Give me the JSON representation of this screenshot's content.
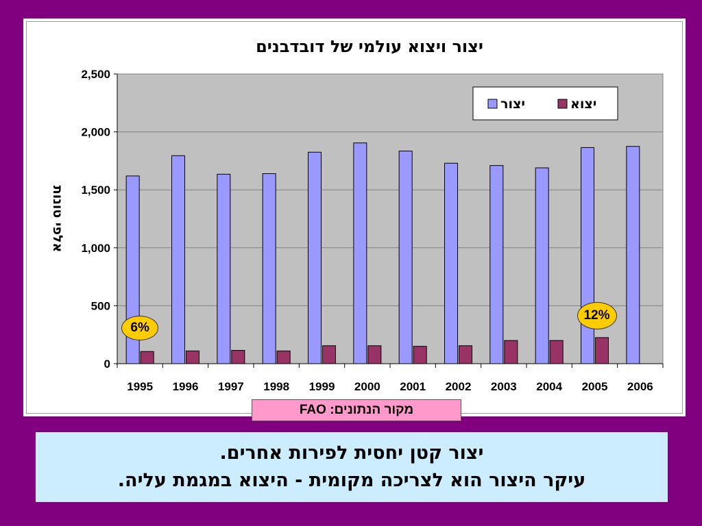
{
  "chart_data": {
    "type": "bar",
    "title": "יצור ויצוא עולמי של דובדבנים",
    "ylabel": "אלפי טונות",
    "xlabel": "",
    "categories": [
      "1995",
      "1996",
      "1997",
      "1998",
      "1999",
      "2000",
      "2001",
      "2002",
      "2003",
      "2004",
      "2005",
      "2006"
    ],
    "series": [
      {
        "name": "יצור",
        "color": "#9999ff",
        "values": [
          1620,
          1795,
          1635,
          1640,
          1825,
          1905,
          1835,
          1730,
          1710,
          1690,
          1865,
          1875
        ]
      },
      {
        "name": "יצוא",
        "color": "#993366",
        "values": [
          105,
          110,
          115,
          110,
          155,
          155,
          150,
          155,
          200,
          200,
          225,
          null
        ]
      }
    ],
    "ylim": [
      0,
      2500
    ],
    "yticks": [
      0,
      500,
      1000,
      1500,
      2000,
      2500
    ],
    "ytick_labels": [
      "0",
      "500",
      "1,000",
      "1,500",
      "2,000",
      "2,500"
    ],
    "grid": true,
    "legend_position": "top-right",
    "plot_background": "#c0c0c0",
    "annotations": [
      {
        "text": "6%",
        "category": "1995"
      },
      {
        "text": "12%",
        "category": "2005"
      }
    ]
  },
  "source_label": "מקור הנתונים: FAO",
  "caption": {
    "line1": "יצור קטן יחסית לפירות אחרים.",
    "line2": "עיקר היצור הוא לצריכה מקומית - היצוא במגמת עליה."
  },
  "colors": {
    "page_background": "#800080",
    "source_background": "#ff99cc",
    "caption_background": "#ccecff",
    "badge_fill": "#ffcc00"
  }
}
